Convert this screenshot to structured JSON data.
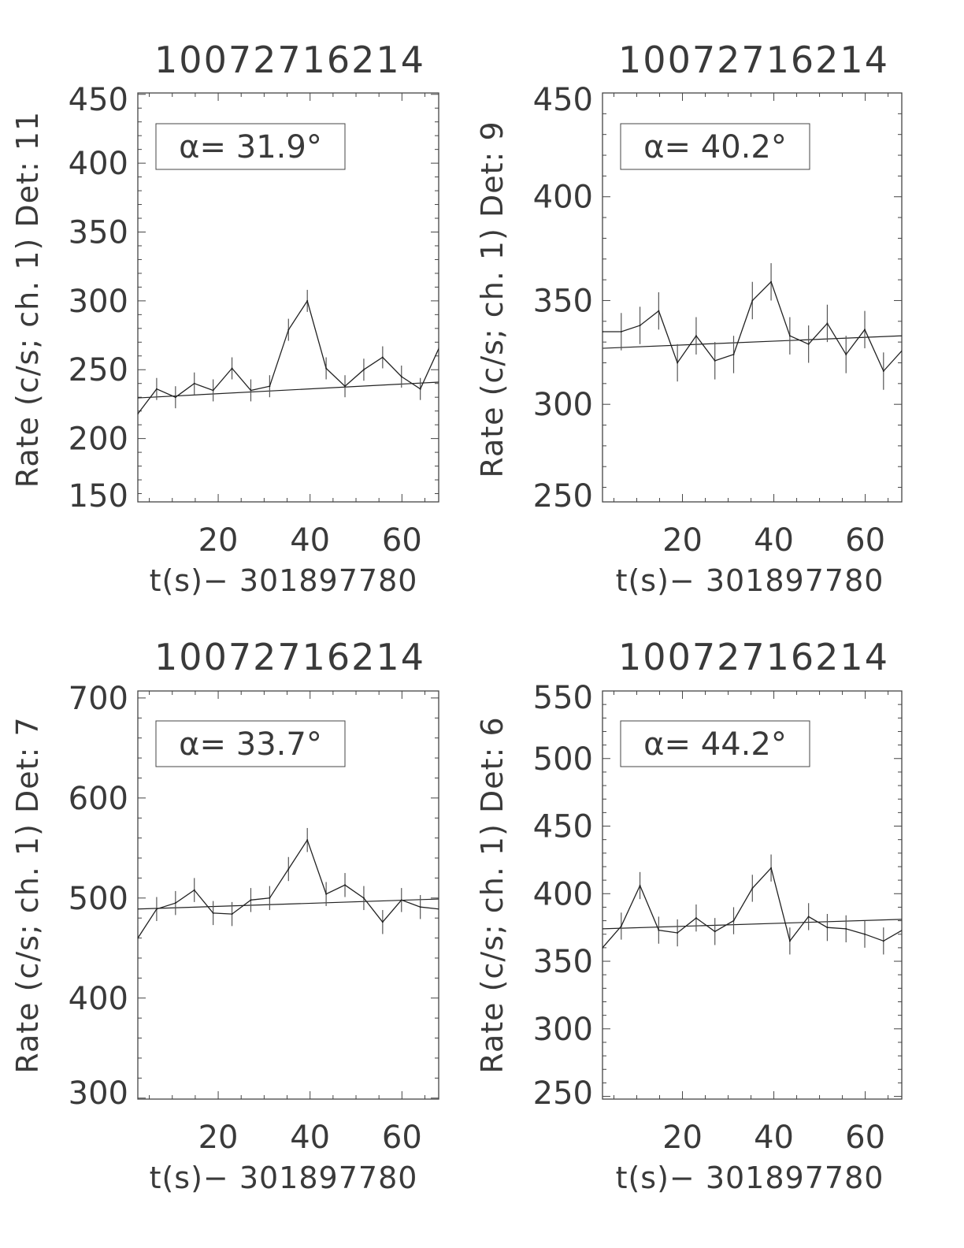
{
  "chart_data": [
    {
      "type": "line",
      "title": "10072716214",
      "xlabel": "t(s)− 301897780",
      "ylabel": "Rate (c/s; ch. 1) Det: 11",
      "annotation": "α= 31.9°",
      "xlim": [
        2.5,
        68
      ],
      "ylim": [
        154,
        451
      ],
      "xticks": [
        20,
        40,
        60
      ],
      "yticks": [
        150,
        200,
        250,
        300,
        350,
        400,
        450
      ],
      "yminor": 10,
      "x": [
        2.5,
        6.6,
        10.7,
        14.8,
        18.9,
        23.0,
        27.1,
        31.2,
        35.3,
        39.4,
        43.5,
        47.6,
        51.7,
        55.8,
        59.9,
        64.0,
        68.1
      ],
      "values": [
        218,
        236,
        230,
        240,
        235,
        251,
        235,
        238,
        279,
        300,
        251,
        238,
        250,
        259,
        245,
        236,
        266
      ],
      "errors": 8,
      "fit": {
        "x": [
          2.5,
          68
        ],
        "y": [
          229.5,
          241
        ]
      }
    },
    {
      "type": "line",
      "title": "10072716214",
      "xlabel": "t(s)− 301897780",
      "ylabel": "Rate (c/s; ch. 1) Det: 9",
      "annotation": "α= 40.2°",
      "xlim": [
        2.5,
        68
      ],
      "ylim": [
        253,
        450
      ],
      "xticks": [
        20,
        40,
        60
      ],
      "yticks": [
        250,
        300,
        350,
        400,
        450
      ],
      "yminor": 10,
      "x": [
        2.5,
        6.6,
        10.7,
        14.8,
        18.9,
        23.0,
        27.1,
        31.2,
        35.3,
        39.4,
        43.5,
        47.6,
        51.7,
        55.8,
        59.9,
        64.0,
        68.1
      ],
      "values": [
        335,
        335,
        338,
        345,
        320,
        333,
        321,
        324,
        350,
        359,
        333,
        329,
        339,
        324,
        336,
        316,
        326
      ],
      "errors": 9,
      "fit": {
        "x": [
          2.5,
          68
        ],
        "y": [
          327,
          333
        ]
      }
    },
    {
      "type": "line",
      "title": "10072716214",
      "xlabel": "t(s)− 301897780",
      "ylabel": "Rate (c/s; ch. 1) Det: 7",
      "annotation": "α= 33.7°",
      "xlim": [
        2.5,
        68
      ],
      "ylim": [
        299,
        707
      ],
      "xticks": [
        20,
        40,
        60
      ],
      "yticks": [
        300,
        400,
        500,
        600,
        700
      ],
      "yminor": 20,
      "x": [
        2.5,
        6.6,
        10.7,
        14.8,
        18.9,
        23.0,
        27.1,
        31.2,
        35.3,
        39.4,
        43.5,
        47.6,
        51.7,
        55.8,
        59.9,
        64.0,
        68.1
      ],
      "values": [
        460,
        489,
        495,
        508,
        485,
        484,
        498,
        500,
        529,
        558,
        504,
        513,
        500,
        476,
        498,
        491,
        489
      ],
      "errors": 12,
      "fit": {
        "x": [
          2.5,
          68
        ],
        "y": [
          489,
          499
        ]
      }
    },
    {
      "type": "line",
      "title": "10072716214",
      "xlabel": "t(s)− 301897780",
      "ylabel": "Rate (c/s; ch. 1) Det: 6",
      "annotation": "α= 44.2°",
      "xlim": [
        2.5,
        68
      ],
      "ylim": [
        248,
        550
      ],
      "xticks": [
        20,
        40,
        60
      ],
      "yticks": [
        250,
        300,
        350,
        400,
        450,
        500,
        550
      ],
      "yminor": 10,
      "x": [
        2.5,
        6.6,
        10.7,
        14.8,
        18.9,
        23.0,
        27.1,
        31.2,
        35.3,
        39.4,
        43.5,
        47.6,
        51.7,
        55.8,
        59.9,
        64.0,
        68.1
      ],
      "values": [
        360,
        376,
        406,
        373,
        371,
        382,
        372,
        380,
        404,
        419,
        365,
        383,
        375,
        374,
        370,
        365,
        373
      ],
      "errors": 10,
      "fit": {
        "x": [
          2.5,
          68
        ],
        "y": [
          374,
          381
        ]
      }
    }
  ],
  "colors": {
    "line": "#222222",
    "errorbar": "#555555",
    "axis": "#444444",
    "text": "#3a3a3a"
  }
}
